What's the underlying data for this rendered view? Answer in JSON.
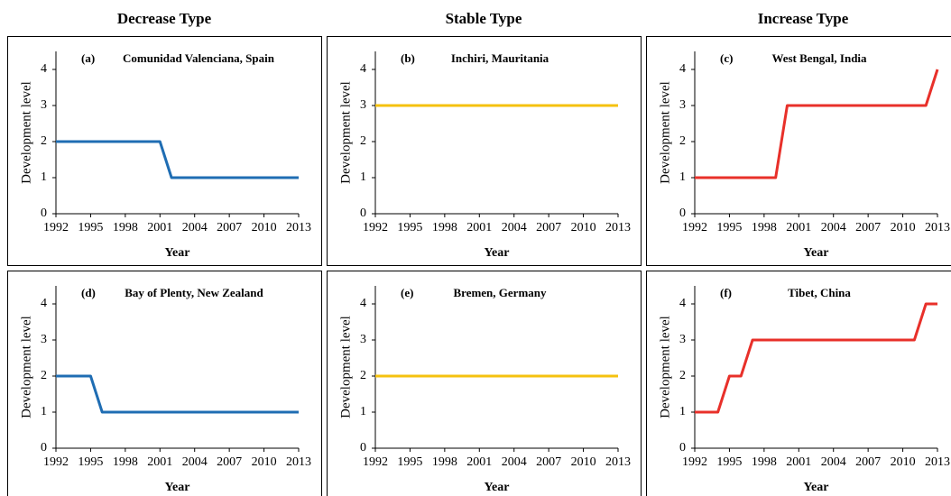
{
  "headers": [
    "Decrease Type",
    "Stable Type",
    "Increase Type"
  ],
  "chart_data": [
    {
      "type": "line",
      "label": "(a)",
      "title": "Comunidad Valenciana, Spain",
      "xlabel": "Year",
      "ylabel": "Development level",
      "x": [
        1992,
        1993,
        1994,
        1995,
        1996,
        1997,
        1998,
        1999,
        2000,
        2001,
        2002,
        2003,
        2004,
        2005,
        2006,
        2007,
        2008,
        2009,
        2010,
        2011,
        2012,
        2013
      ],
      "series": [
        {
          "color": "#1f6db3",
          "values": [
            2,
            2,
            2,
            2,
            2,
            2,
            2,
            2,
            2,
            2,
            1,
            1,
            1,
            1,
            1,
            1,
            1,
            1,
            1,
            1,
            1,
            1
          ]
        }
      ],
      "xlim": [
        1992,
        2013
      ],
      "xticks": [
        1992,
        1995,
        1998,
        2001,
        2004,
        2007,
        2010,
        2013
      ],
      "ylim": [
        0,
        4.5
      ],
      "yticks": [
        0,
        1,
        2,
        3,
        4
      ]
    },
    {
      "type": "line",
      "label": "(b)",
      "title": "Inchiri, Mauritania",
      "xlabel": "Year",
      "ylabel": "Development level",
      "x": [
        1992,
        1993,
        1994,
        1995,
        1996,
        1997,
        1998,
        1999,
        2000,
        2001,
        2002,
        2003,
        2004,
        2005,
        2006,
        2007,
        2008,
        2009,
        2010,
        2011,
        2012,
        2013
      ],
      "series": [
        {
          "color": "#f5c20f",
          "values": [
            3,
            3,
            3,
            3,
            3,
            3,
            3,
            3,
            3,
            3,
            3,
            3,
            3,
            3,
            3,
            3,
            3,
            3,
            3,
            3,
            3,
            3
          ]
        }
      ],
      "xlim": [
        1992,
        2013
      ],
      "xticks": [
        1992,
        1995,
        1998,
        2001,
        2004,
        2007,
        2010,
        2013
      ],
      "ylim": [
        0,
        4.5
      ],
      "yticks": [
        0,
        1,
        2,
        3,
        4
      ]
    },
    {
      "type": "line",
      "label": "(c)",
      "title": "West Bengal, India",
      "xlabel": "Year",
      "ylabel": "Development level",
      "x": [
        1992,
        1993,
        1994,
        1995,
        1996,
        1997,
        1998,
        1999,
        2000,
        2001,
        2002,
        2003,
        2004,
        2005,
        2006,
        2007,
        2008,
        2009,
        2010,
        2011,
        2012,
        2013
      ],
      "series": [
        {
          "color": "#e8302a",
          "values": [
            1,
            1,
            1,
            1,
            1,
            1,
            1,
            1,
            3,
            3,
            3,
            3,
            3,
            3,
            3,
            3,
            3,
            3,
            3,
            3,
            3,
            4
          ]
        }
      ],
      "xlim": [
        1992,
        2013
      ],
      "xticks": [
        1992,
        1995,
        1998,
        2001,
        2004,
        2007,
        2010,
        2013
      ],
      "ylim": [
        0,
        4.5
      ],
      "yticks": [
        0,
        1,
        2,
        3,
        4
      ]
    },
    {
      "type": "line",
      "label": "(d)",
      "title": "Bay of Plenty, New Zealand",
      "xlabel": "Year",
      "ylabel": "Development level",
      "x": [
        1992,
        1993,
        1994,
        1995,
        1996,
        1997,
        1998,
        1999,
        2000,
        2001,
        2002,
        2003,
        2004,
        2005,
        2006,
        2007,
        2008,
        2009,
        2010,
        2011,
        2012,
        2013
      ],
      "series": [
        {
          "color": "#1f6db3",
          "values": [
            2,
            2,
            2,
            2,
            1,
            1,
            1,
            1,
            1,
            1,
            1,
            1,
            1,
            1,
            1,
            1,
            1,
            1,
            1,
            1,
            1,
            1
          ]
        }
      ],
      "xlim": [
        1992,
        2013
      ],
      "xticks": [
        1992,
        1995,
        1998,
        2001,
        2004,
        2007,
        2010,
        2013
      ],
      "ylim": [
        0,
        4.5
      ],
      "yticks": [
        0,
        1,
        2,
        3,
        4
      ]
    },
    {
      "type": "line",
      "label": "(e)",
      "title": "Bremen, Germany",
      "xlabel": "Year",
      "ylabel": "Development level",
      "x": [
        1992,
        1993,
        1994,
        1995,
        1996,
        1997,
        1998,
        1999,
        2000,
        2001,
        2002,
        2003,
        2004,
        2005,
        2006,
        2007,
        2008,
        2009,
        2010,
        2011,
        2012,
        2013
      ],
      "series": [
        {
          "color": "#f5c20f",
          "values": [
            2,
            2,
            2,
            2,
            2,
            2,
            2,
            2,
            2,
            2,
            2,
            2,
            2,
            2,
            2,
            2,
            2,
            2,
            2,
            2,
            2,
            2
          ]
        }
      ],
      "xlim": [
        1992,
        2013
      ],
      "xticks": [
        1992,
        1995,
        1998,
        2001,
        2004,
        2007,
        2010,
        2013
      ],
      "ylim": [
        0,
        4.5
      ],
      "yticks": [
        0,
        1,
        2,
        3,
        4
      ]
    },
    {
      "type": "line",
      "label": "(f)",
      "title": "Tibet, China",
      "xlabel": "Year",
      "ylabel": "Development level",
      "x": [
        1992,
        1993,
        1994,
        1995,
        1996,
        1997,
        1998,
        1999,
        2000,
        2001,
        2002,
        2003,
        2004,
        2005,
        2006,
        2007,
        2008,
        2009,
        2010,
        2011,
        2012,
        2013
      ],
      "series": [
        {
          "color": "#e8302a",
          "values": [
            1,
            1,
            1,
            2,
            2,
            3,
            3,
            3,
            3,
            3,
            3,
            3,
            3,
            3,
            3,
            3,
            3,
            3,
            3,
            3,
            4,
            4
          ]
        }
      ],
      "xlim": [
        1992,
        2013
      ],
      "xticks": [
        1992,
        1995,
        1998,
        2001,
        2004,
        2007,
        2010,
        2013
      ],
      "ylim": [
        0,
        4.5
      ],
      "yticks": [
        0,
        1,
        2,
        3,
        4
      ]
    }
  ]
}
